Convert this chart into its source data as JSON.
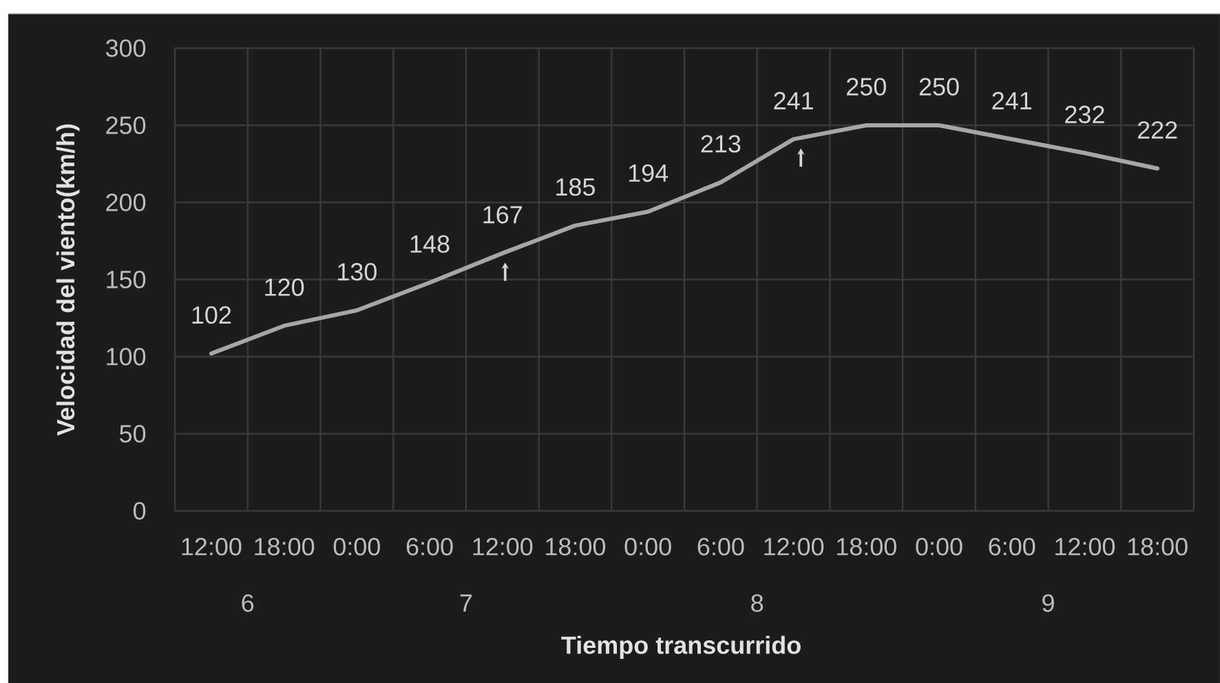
{
  "chart_data": {
    "type": "line",
    "xlabel": "Tiempo transcurrido",
    "ylabel": "Velocidad del viento(km/h)",
    "categories": [
      "12:00",
      "18:00",
      "0:00",
      "6:00",
      "12:00",
      "18:00",
      "0:00",
      "6:00",
      "12:00",
      "18:00",
      "0:00",
      "6:00",
      "12:00",
      "18:00"
    ],
    "series": [
      {
        "color": "#a6a6a6",
        "values": [
          102,
          120,
          130,
          148,
          167,
          185,
          194,
          213,
          241,
          250,
          250,
          241,
          232,
          222
        ]
      }
    ],
    "ylim": [
      0,
      300
    ],
    "yticks": [
      0,
      50,
      100,
      150,
      200,
      250,
      300
    ],
    "grid": true,
    "data_labels": true,
    "marker": "none",
    "line_style": "solid",
    "annotations": [
      "6",
      "7",
      "8",
      "9"
    ]
  }
}
